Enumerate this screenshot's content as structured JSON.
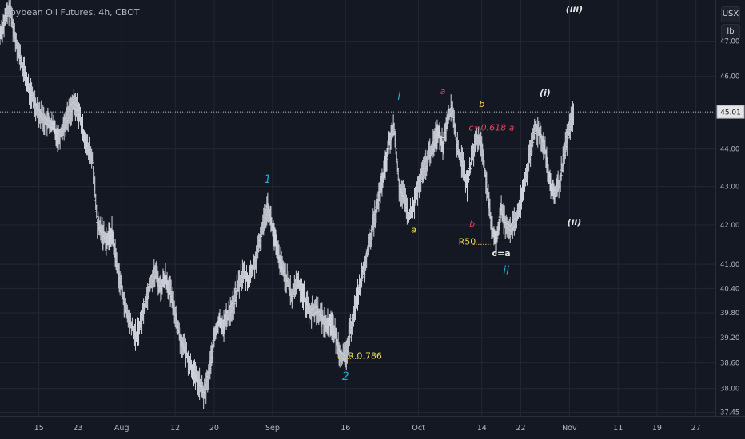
{
  "header": {
    "title": "Soybean Oil Futures, 4h, CBOT",
    "currency": "USX",
    "unit": "lb"
  },
  "colors": {
    "background": "#141823",
    "grid": "#232734",
    "candles": "#d1d4dc",
    "cyan_labels": "#26a6c8",
    "yellow_labels": "#f6d74a",
    "red_labels": "#e0455a",
    "white_labels": "#e6e6e6",
    "price_line": "#b2b5be"
  },
  "chart_data": {
    "type": "line",
    "title": "Soybean Oil Futures, 4h, CBOT",
    "y_scale": "log",
    "ylim": [
      37.35,
      48.2
    ],
    "y_ticks": [
      47.0,
      46.0,
      45.0,
      44.0,
      43.0,
      42.0,
      41.0,
      40.4,
      39.8,
      39.2,
      38.6,
      38.0,
      37.45
    ],
    "x_ticks": [
      {
        "label": "15",
        "x": 15
      },
      {
        "label": "23",
        "x": 23
      },
      {
        "label": "Aug",
        "x": 32
      },
      {
        "label": "12",
        "x": 43
      },
      {
        "label": "20",
        "x": 51
      },
      {
        "label": "Sep",
        "x": 63
      },
      {
        "label": "16",
        "x": 78
      },
      {
        "label": "Oct",
        "x": 93
      },
      {
        "label": "14",
        "x": 106
      },
      {
        "label": "22",
        "x": 114
      },
      {
        "label": "Nov",
        "x": 124
      },
      {
        "label": "11",
        "x": 134
      },
      {
        "label": "19",
        "x": 142
      },
      {
        "label": "27",
        "x": 150
      }
    ],
    "xlim": [
      7,
      154
    ],
    "last_price": 45.01,
    "series": [
      {
        "values": [
          [
            7,
            47.2
          ],
          [
            8,
            47.6
          ],
          [
            9,
            48.0
          ],
          [
            10,
            47.2
          ],
          [
            11,
            46.6
          ],
          [
            12,
            46.1
          ],
          [
            13,
            45.6
          ],
          [
            14,
            45.3
          ],
          [
            15,
            45.0
          ],
          [
            16,
            44.8
          ],
          [
            17,
            44.7
          ],
          [
            18,
            44.6
          ],
          [
            19,
            44.3
          ],
          [
            20,
            44.6
          ],
          [
            21,
            44.9
          ],
          [
            22,
            45.2
          ],
          [
            23,
            45.1
          ],
          [
            24,
            44.5
          ],
          [
            25,
            44.0
          ],
          [
            26,
            43.7
          ],
          [
            27,
            42.0
          ],
          [
            28,
            41.8
          ],
          [
            29,
            41.6
          ],
          [
            30,
            41.8
          ],
          [
            31,
            41.0
          ],
          [
            32,
            40.4
          ],
          [
            33,
            39.8
          ],
          [
            34,
            39.5
          ],
          [
            35,
            39.2
          ],
          [
            36,
            39.6
          ],
          [
            37,
            40.1
          ],
          [
            38,
            40.6
          ],
          [
            39,
            40.8
          ],
          [
            40,
            40.4
          ],
          [
            41,
            40.7
          ],
          [
            42,
            40.3
          ],
          [
            43,
            39.8
          ],
          [
            44,
            39.2
          ],
          [
            45,
            38.9
          ],
          [
            46,
            38.6
          ],
          [
            47,
            38.3
          ],
          [
            48,
            38.1
          ],
          [
            49,
            37.85
          ],
          [
            50,
            38.4
          ],
          [
            51,
            39.2
          ],
          [
            52,
            39.6
          ],
          [
            53,
            39.5
          ],
          [
            54,
            39.8
          ],
          [
            55,
            40.0
          ],
          [
            56,
            40.5
          ],
          [
            57,
            40.8
          ],
          [
            58,
            40.6
          ],
          [
            59,
            40.9
          ],
          [
            60,
            41.3
          ],
          [
            61,
            42.0
          ],
          [
            62,
            42.5
          ],
          [
            63,
            41.9
          ],
          [
            64,
            41.3
          ],
          [
            65,
            40.9
          ],
          [
            66,
            40.6
          ],
          [
            67,
            40.2
          ],
          [
            68,
            40.6
          ],
          [
            69,
            40.4
          ],
          [
            70,
            40.0
          ],
          [
            71,
            39.8
          ],
          [
            72,
            39.9
          ],
          [
            73,
            39.7
          ],
          [
            74,
            39.5
          ],
          [
            75,
            39.6
          ],
          [
            76,
            39.2
          ],
          [
            77,
            38.8
          ],
          [
            78,
            38.7
          ],
          [
            79,
            39.4
          ],
          [
            80,
            40.0
          ],
          [
            81,
            40.5
          ],
          [
            82,
            41.0
          ],
          [
            83,
            41.6
          ],
          [
            84,
            42.2
          ],
          [
            85,
            42.8
          ],
          [
            86,
            43.4
          ],
          [
            87,
            44.2
          ],
          [
            88,
            44.6
          ],
          [
            89,
            43.0
          ],
          [
            90,
            42.7
          ],
          [
            91,
            42.2
          ],
          [
            92,
            42.5
          ],
          [
            93,
            43.0
          ],
          [
            94,
            43.4
          ],
          [
            95,
            43.8
          ],
          [
            96,
            44.1
          ],
          [
            97,
            44.5
          ],
          [
            98,
            44.1
          ],
          [
            99,
            44.9
          ],
          [
            100,
            45.1
          ],
          [
            101,
            44.0
          ],
          [
            102,
            43.6
          ],
          [
            103,
            43.0
          ],
          [
            104,
            43.8
          ],
          [
            105,
            44.3
          ],
          [
            106,
            44.1
          ],
          [
            107,
            43.0
          ],
          [
            108,
            41.9
          ],
          [
            109,
            41.6
          ],
          [
            110,
            42.4
          ],
          [
            111,
            42.0
          ],
          [
            112,
            41.9
          ],
          [
            113,
            42.1
          ],
          [
            114,
            42.6
          ],
          [
            115,
            43.2
          ],
          [
            116,
            43.9
          ],
          [
            117,
            44.6
          ],
          [
            118,
            44.4
          ],
          [
            119,
            44.0
          ],
          [
            120,
            43.0
          ],
          [
            121,
            42.8
          ],
          [
            122,
            43.1
          ],
          [
            123,
            43.9
          ],
          [
            124,
            44.6
          ],
          [
            125,
            45.01
          ]
        ]
      }
    ],
    "annotations": [
      {
        "text": "1",
        "x": 62,
        "y": 43.1,
        "color": "cyan",
        "style": "italic"
      },
      {
        "text": "2",
        "x": 78,
        "y": 38.2,
        "color": "cyan",
        "style": "italic"
      },
      {
        "text": "R 0.786",
        "x": 82,
        "y": 38.7,
        "color": "yellow",
        "style": "plain"
      },
      {
        "text": "i",
        "x": 89,
        "y": 45.35,
        "color": "cyan",
        "style": "italic"
      },
      {
        "text": "a",
        "x": 92,
        "y": 41.8,
        "color": "yellow",
        "style": "italic"
      },
      {
        "text": "a",
        "x": 98,
        "y": 45.5,
        "color": "red",
        "style": "italic"
      },
      {
        "text": "b",
        "x": 106,
        "y": 45.15,
        "color": "yellow",
        "style": "italic"
      },
      {
        "text": "c=0.618 a",
        "x": 108,
        "y": 44.5,
        "color": "red",
        "style": "italic"
      },
      {
        "text": "b",
        "x": 104,
        "y": 41.95,
        "color": "red",
        "style": "italic"
      },
      {
        "text": "R50",
        "x": 103,
        "y": 41.5,
        "color": "yellow",
        "style": "plain"
      },
      {
        "text": "c=a",
        "x": 110,
        "y": 41.2,
        "color": "white",
        "style": "plain"
      },
      {
        "text": "ii",
        "x": 111,
        "y": 40.75,
        "color": "cyan",
        "style": "italic"
      },
      {
        "text": "(i)",
        "x": 119,
        "y": 45.45,
        "color": "white",
        "style": "italic"
      },
      {
        "text": "(ii)",
        "x": 125,
        "y": 42.0,
        "color": "white",
        "style": "italic"
      },
      {
        "text": "(iii)",
        "x": 125,
        "y": 47.85,
        "color": "white",
        "style": "italic"
      }
    ],
    "grid": true,
    "legend": "none"
  }
}
